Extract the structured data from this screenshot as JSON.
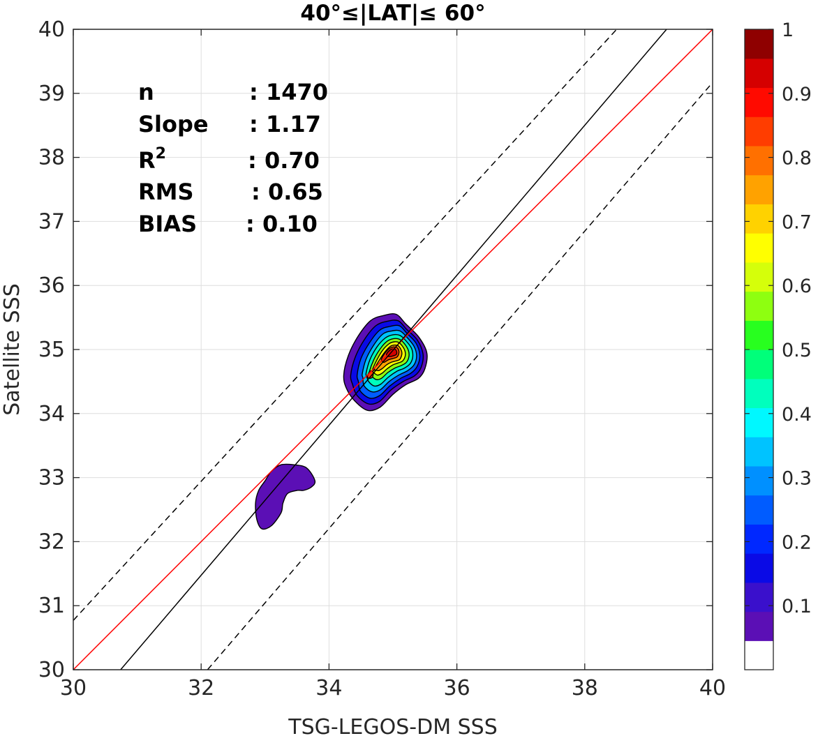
{
  "chart_data": {
    "type": "contour",
    "title": "40°≤|LAT|≤ 60°",
    "xlabel": "TSG-LEGOS-DM SSS",
    "ylabel": "Satellite SSS",
    "xlim": [
      30,
      40
    ],
    "ylim": [
      30,
      40
    ],
    "xticks": [
      "30",
      "32",
      "34",
      "36",
      "38",
      "40"
    ],
    "yticks": [
      "30",
      "31",
      "32",
      "33",
      "34",
      "35",
      "36",
      "37",
      "38",
      "39",
      "40"
    ],
    "grid": true,
    "stats": [
      {
        "name": "n",
        "sep": ": ",
        "value": "1470"
      },
      {
        "name": "Slope",
        "sep": ": ",
        "value": "1.17"
      },
      {
        "name": "R",
        "sup": "2",
        "sep": ": ",
        "value": "0.70"
      },
      {
        "name": "RMS",
        "sep": ": ",
        "value": "0.65"
      },
      {
        "name": "BIAS",
        "sep": ": ",
        "value": "0.10"
      }
    ],
    "lines": [
      {
        "style": "red-solid",
        "color": "#ff0000",
        "x": [
          30,
          40
        ],
        "y": [
          30,
          40
        ]
      },
      {
        "style": "black-solid",
        "color": "#000000",
        "x": [
          30.74,
          39.28
        ],
        "y": [
          30,
          40
        ]
      },
      {
        "style": "black-dashed",
        "color": "#000000",
        "x": [
          30,
          38.5
        ],
        "y": [
          30.77,
          40
        ]
      },
      {
        "style": "black-dashed",
        "color": "#000000",
        "x": [
          32.1,
          40
        ],
        "y": [
          30,
          39.17
        ]
      }
    ],
    "contours": [
      {
        "level": 0.05,
        "points": [
          [
            32.85,
            32.6
          ],
          [
            32.9,
            32.8
          ],
          [
            33.0,
            32.95
          ],
          [
            33.1,
            33.1
          ],
          [
            33.25,
            33.2
          ],
          [
            33.45,
            33.2
          ],
          [
            33.65,
            33.15
          ],
          [
            33.78,
            32.95
          ],
          [
            33.72,
            32.85
          ],
          [
            33.6,
            32.8
          ],
          [
            33.5,
            32.8
          ],
          [
            33.35,
            32.75
          ],
          [
            33.28,
            32.6
          ],
          [
            33.25,
            32.45
          ],
          [
            33.1,
            32.25
          ],
          [
            32.95,
            32.2
          ],
          [
            32.87,
            32.35
          ]
        ]
      },
      {
        "level": 0.05,
        "points": [
          [
            34.23,
            34.6
          ],
          [
            34.3,
            34.9
          ],
          [
            34.45,
            35.2
          ],
          [
            34.65,
            35.45
          ],
          [
            34.85,
            35.53
          ],
          [
            35.05,
            35.55
          ],
          [
            35.2,
            35.4
          ],
          [
            35.4,
            35.2
          ],
          [
            35.53,
            34.95
          ],
          [
            35.5,
            34.7
          ],
          [
            35.4,
            34.55
          ],
          [
            35.2,
            34.45
          ],
          [
            35.0,
            34.3
          ],
          [
            34.8,
            34.1
          ],
          [
            34.6,
            34.05
          ],
          [
            34.4,
            34.2
          ],
          [
            34.27,
            34.4
          ]
        ]
      },
      {
        "level": 0.15,
        "points": [
          [
            34.34,
            34.6
          ],
          [
            34.41,
            34.88
          ],
          [
            34.55,
            35.15
          ],
          [
            34.73,
            35.37
          ],
          [
            34.91,
            35.44
          ],
          [
            35.08,
            35.45
          ],
          [
            35.21,
            35.32
          ],
          [
            35.38,
            35.15
          ],
          [
            35.47,
            34.93
          ],
          [
            35.44,
            34.72
          ],
          [
            35.34,
            34.59
          ],
          [
            35.16,
            34.5
          ],
          [
            34.97,
            34.37
          ],
          [
            34.79,
            34.19
          ],
          [
            34.62,
            34.15
          ],
          [
            34.44,
            34.28
          ],
          [
            34.37,
            34.45
          ]
        ]
      },
      {
        "level": 0.25,
        "points": [
          [
            34.44,
            34.6
          ],
          [
            34.5,
            34.86
          ],
          [
            34.63,
            35.1
          ],
          [
            34.79,
            35.3
          ],
          [
            34.95,
            35.36
          ],
          [
            35.1,
            35.37
          ],
          [
            35.22,
            35.25
          ],
          [
            35.36,
            35.1
          ],
          [
            35.42,
            34.91
          ],
          [
            35.38,
            34.74
          ],
          [
            35.28,
            34.63
          ],
          [
            35.12,
            34.55
          ],
          [
            34.95,
            34.43
          ],
          [
            34.79,
            34.28
          ],
          [
            34.64,
            34.24
          ],
          [
            34.49,
            34.35
          ],
          [
            34.46,
            34.5
          ]
        ]
      },
      {
        "level": 0.35,
        "points": [
          [
            34.52,
            34.62
          ],
          [
            34.58,
            34.85
          ],
          [
            34.7,
            35.07
          ],
          [
            34.84,
            35.24
          ],
          [
            34.98,
            35.29
          ],
          [
            35.11,
            35.29
          ],
          [
            35.22,
            35.19
          ],
          [
            35.33,
            35.05
          ],
          [
            35.37,
            34.9
          ],
          [
            35.33,
            34.76
          ],
          [
            35.23,
            34.67
          ],
          [
            35.09,
            34.6
          ],
          [
            34.94,
            34.5
          ],
          [
            34.8,
            34.37
          ],
          [
            34.67,
            34.34
          ],
          [
            34.55,
            34.43
          ],
          [
            34.53,
            34.56
          ]
        ]
      },
      {
        "level": 0.45,
        "points": [
          [
            34.58,
            34.63
          ],
          [
            34.64,
            34.84
          ],
          [
            34.75,
            35.04
          ],
          [
            34.88,
            35.18
          ],
          [
            35.0,
            35.23
          ],
          [
            35.11,
            35.22
          ],
          [
            35.2,
            35.14
          ],
          [
            35.29,
            35.02
          ],
          [
            35.31,
            34.89
          ],
          [
            35.27,
            34.78
          ],
          [
            35.18,
            34.71
          ],
          [
            35.06,
            34.66
          ],
          [
            34.93,
            34.57
          ],
          [
            34.81,
            34.46
          ],
          [
            34.71,
            34.43
          ],
          [
            34.62,
            34.5
          ],
          [
            34.59,
            34.58
          ]
        ]
      },
      {
        "level": 0.55,
        "points": [
          [
            34.63,
            34.65
          ],
          [
            34.7,
            34.84
          ],
          [
            34.8,
            35.01
          ],
          [
            34.91,
            35.13
          ],
          [
            35.01,
            35.17
          ],
          [
            35.1,
            35.16
          ],
          [
            35.18,
            35.09
          ],
          [
            35.24,
            34.99
          ],
          [
            35.25,
            34.89
          ],
          [
            35.21,
            34.8
          ],
          [
            35.13,
            34.75
          ],
          [
            35.03,
            34.71
          ],
          [
            34.92,
            34.64
          ],
          [
            34.82,
            34.55
          ],
          [
            34.74,
            34.53
          ],
          [
            34.67,
            34.58
          ],
          [
            34.64,
            34.62
          ]
        ]
      },
      {
        "level": 0.65,
        "points": [
          [
            34.67,
            34.66
          ],
          [
            34.75,
            34.84
          ],
          [
            34.84,
            34.99
          ],
          [
            34.94,
            35.09
          ],
          [
            35.02,
            35.12
          ],
          [
            35.09,
            35.11
          ],
          [
            35.15,
            35.05
          ],
          [
            35.19,
            34.97
          ],
          [
            35.19,
            34.89
          ],
          [
            35.15,
            34.82
          ],
          [
            35.08,
            34.79
          ],
          [
            35.0,
            34.76
          ],
          [
            34.91,
            34.7
          ],
          [
            34.83,
            34.63
          ],
          [
            34.76,
            34.6
          ],
          [
            34.71,
            34.63
          ],
          [
            34.68,
            34.65
          ]
        ]
      },
      {
        "level": 0.75,
        "points": [
          [
            34.7,
            34.68
          ],
          [
            34.79,
            34.84
          ],
          [
            34.88,
            34.97
          ],
          [
            34.96,
            35.05
          ],
          [
            35.02,
            35.07
          ],
          [
            35.08,
            35.06
          ],
          [
            35.12,
            35.01
          ],
          [
            35.14,
            34.95
          ],
          [
            35.13,
            34.89
          ],
          [
            35.1,
            34.84
          ],
          [
            35.04,
            34.82
          ],
          [
            34.97,
            34.8
          ],
          [
            34.9,
            34.76
          ],
          [
            34.83,
            34.7
          ],
          [
            34.77,
            34.67
          ],
          [
            34.73,
            34.68
          ],
          [
            34.71,
            34.68
          ]
        ]
      },
      {
        "level": 0.85,
        "points": [
          [
            34.82,
            34.85
          ],
          [
            34.88,
            34.95
          ],
          [
            34.95,
            35.02
          ],
          [
            35.01,
            35.04
          ],
          [
            35.06,
            35.03
          ],
          [
            35.09,
            34.99
          ],
          [
            35.09,
            34.93
          ],
          [
            35.06,
            34.88
          ],
          [
            35.0,
            34.86
          ],
          [
            34.93,
            34.84
          ],
          [
            34.86,
            34.8
          ],
          [
            34.83,
            34.82
          ]
        ]
      },
      {
        "level": 0.95,
        "points": [
          [
            34.9,
            34.93
          ],
          [
            34.95,
            34.99
          ],
          [
            35.0,
            35.01
          ],
          [
            35.04,
            35.0
          ],
          [
            35.06,
            34.96
          ],
          [
            35.05,
            34.92
          ],
          [
            35.0,
            34.9
          ],
          [
            34.95,
            34.89
          ],
          [
            34.91,
            34.9
          ]
        ]
      },
      {
        "level": 0.85,
        "points": [
          [
            34.6,
            34.58
          ],
          [
            34.64,
            34.66
          ],
          [
            34.69,
            34.65
          ],
          [
            34.68,
            34.57
          ],
          [
            34.63,
            34.55
          ]
        ]
      }
    ],
    "colorbar": {
      "min": 0,
      "max": 1,
      "ticks": [
        "0.1",
        "0.2",
        "0.3",
        "0.4",
        "0.5",
        "0.6",
        "0.7",
        "0.8",
        "0.9",
        "1"
      ],
      "colors": [
        "#ffffff",
        "#5b0fb5",
        "#3a10cc",
        "#0a0ae6",
        "#0028ff",
        "#005cff",
        "#0090ff",
        "#00c3ff",
        "#00f8ff",
        "#00ffbd",
        "#00ff7a",
        "#28ff1f",
        "#8eff10",
        "#d5ff0a",
        "#ffff00",
        "#ffd200",
        "#ffa200",
        "#ff7000",
        "#ff3d00",
        "#ff0a00",
        "#d50000",
        "#8f0000"
      ]
    }
  }
}
